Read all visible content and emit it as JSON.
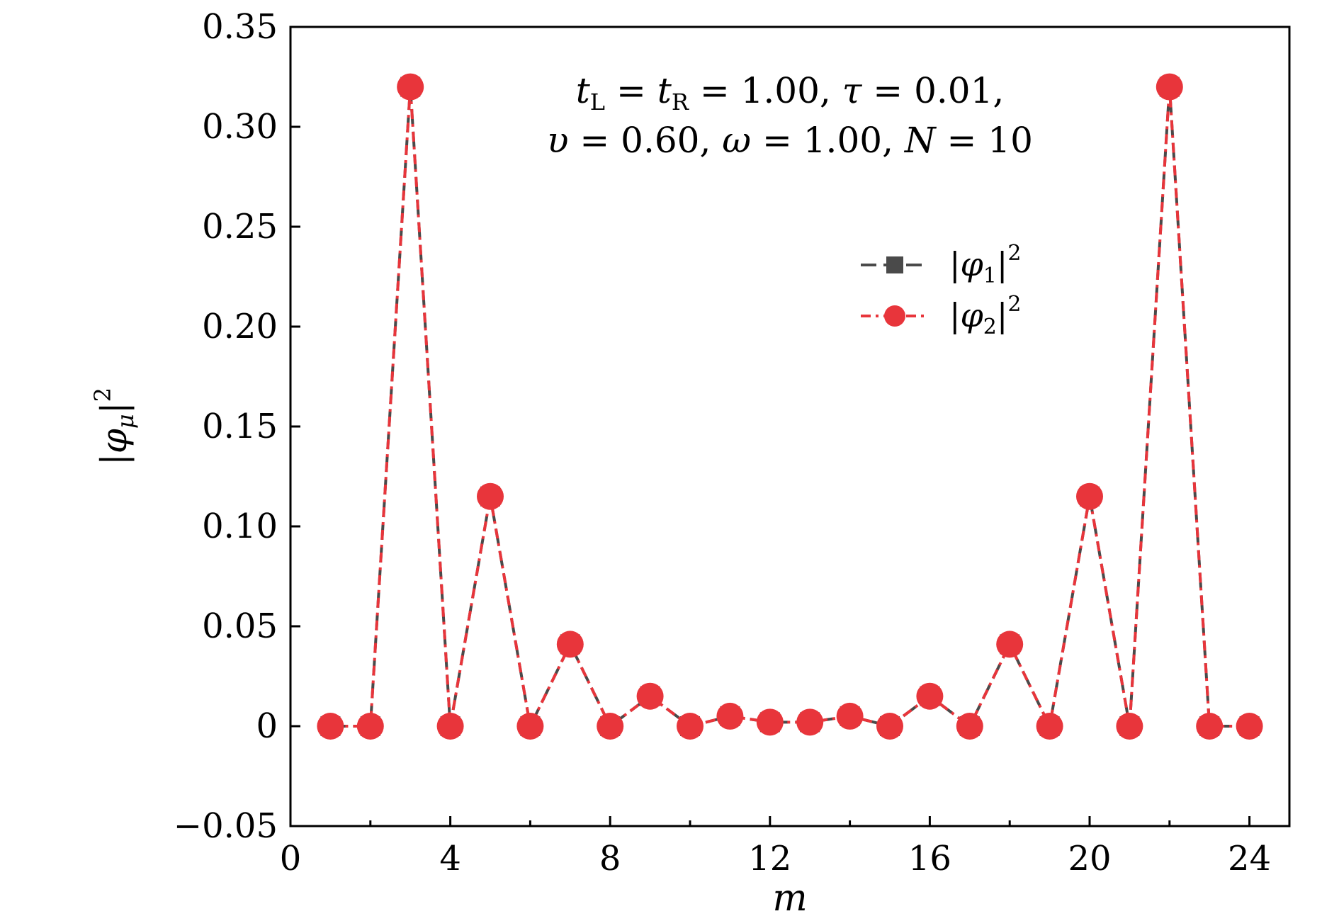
{
  "chart_data": {
    "type": "line",
    "xlabel": "m",
    "ylabel": "|φμ|²",
    "xlim": [
      0,
      25
    ],
    "ylim": [
      -0.05,
      0.35
    ],
    "xticks": [
      0,
      4,
      8,
      12,
      16,
      20,
      24
    ],
    "xtick_labels": [
      "0",
      "4",
      "8",
      "12",
      "16",
      "20",
      "24"
    ],
    "yticks": [
      -0.05,
      0,
      0.05,
      0.1,
      0.15,
      0.2,
      0.25,
      0.3,
      0.35
    ],
    "ytick_labels": [
      "−0.05",
      "0",
      "0.05",
      "0.10",
      "0.15",
      "0.20",
      "0.25",
      "0.30",
      "0.35"
    ],
    "annotation_lines": [
      "tL = tR = 1.00, τ = 0.01,",
      "υ = 0.60, ω = 1.00, N = 10"
    ],
    "legend_position": "upper-right-center",
    "grid": false,
    "x": [
      1,
      2,
      3,
      4,
      5,
      6,
      7,
      8,
      9,
      10,
      11,
      12,
      13,
      14,
      15,
      16,
      17,
      18,
      19,
      20,
      21,
      22,
      23,
      24
    ],
    "series": [
      {
        "name": "|φ1|²",
        "color": "#4a4a4a",
        "marker": "square",
        "line_style": "dashed",
        "values": [
          0,
          0,
          0.32,
          0,
          0.115,
          0,
          0.041,
          0,
          0.015,
          0,
          0.005,
          0.002,
          0.002,
          0.005,
          0,
          0.015,
          0,
          0.041,
          0,
          0.115,
          0,
          0.32,
          0,
          0
        ]
      },
      {
        "name": "|φ2|²",
        "color": "#e8353b",
        "marker": "circle",
        "line_style": "dash-dot",
        "values": [
          0,
          0,
          0.32,
          0,
          0.115,
          0,
          0.041,
          0,
          0.015,
          0,
          0.005,
          0.002,
          0.002,
          0.005,
          0,
          0.015,
          0,
          0.041,
          0,
          0.115,
          0,
          0.32,
          0,
          0
        ]
      }
    ]
  }
}
